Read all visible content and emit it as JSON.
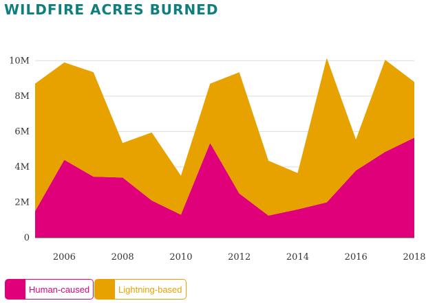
{
  "chart_data": {
    "type": "area",
    "stacked": true,
    "title": "WILDFIRE ACRES BURNED",
    "xlabel": "",
    "ylabel": "",
    "x": [
      2005,
      2006,
      2007,
      2008,
      2009,
      2010,
      2011,
      2012,
      2013,
      2014,
      2015,
      2016,
      2017,
      2018
    ],
    "xticks": [
      "2006",
      "2008",
      "2010",
      "2012",
      "2014",
      "2016",
      "2018"
    ],
    "xtick_values": [
      2006,
      2008,
      2010,
      2012,
      2014,
      2016,
      2018
    ],
    "yticks": [
      "0",
      "2M",
      "4M",
      "6M",
      "8M",
      "10M"
    ],
    "ytick_values": [
      0,
      2000000,
      4000000,
      6000000,
      8000000,
      10000000
    ],
    "xlim": [
      2005,
      2018
    ],
    "ylim": [
      0,
      10400000
    ],
    "grid": true,
    "legend_position": "bottom-left",
    "series": [
      {
        "name": "Human-caused",
        "color": "#e0007a",
        "values": [
          1500000,
          4400000,
          3450000,
          3400000,
          2100000,
          1300000,
          5350000,
          2500000,
          1250000,
          1600000,
          2000000,
          3800000,
          4850000,
          5650000
        ]
      },
      {
        "name": "Lightning-based",
        "color": "#e8a200",
        "values": [
          7200000,
          5500000,
          5900000,
          1950000,
          3850000,
          2200000,
          3350000,
          6850000,
          3100000,
          2050000,
          8150000,
          1750000,
          5200000,
          3150000
        ]
      }
    ]
  }
}
